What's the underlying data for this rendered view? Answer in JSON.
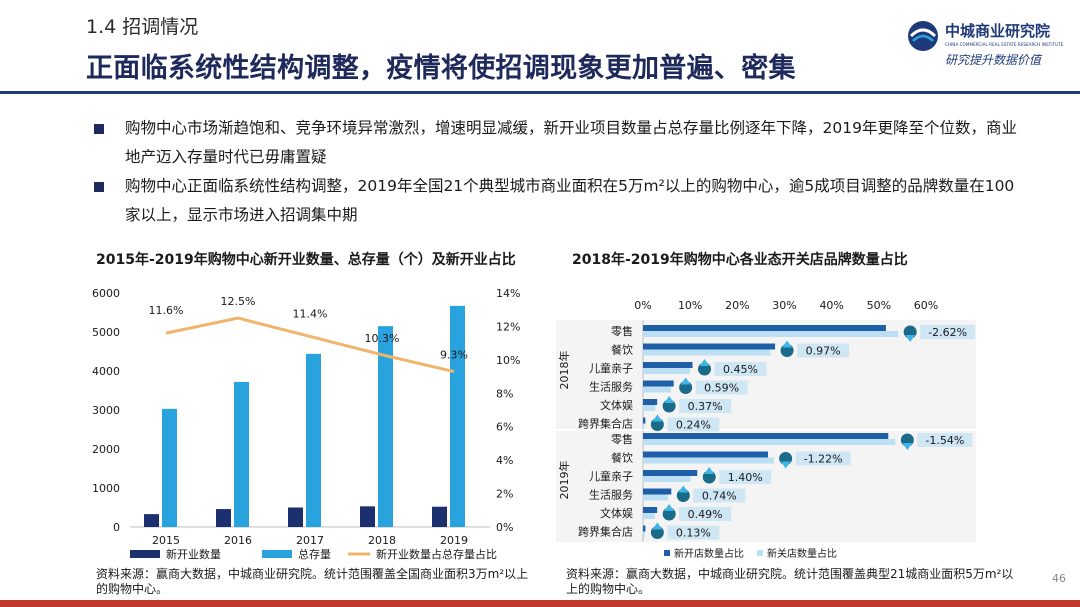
{
  "header": {
    "section": "1.4  招调情况",
    "title": "正面临系统性结构调整，疫情将使招调现象更加普遍、密集"
  },
  "logo": {
    "name": "中城商业研究院",
    "name_en": "CHINA COMMERCIAL REAL ESTATE RESEARCH INSTITUTE",
    "slogan": "研究提升数据价值"
  },
  "bullets": [
    "购物中心市场渐趋饱和、竞争环境异常激烈，增速明显减缓，新开业项目数量占总存量比例逐年下降，2019年更降至个位数，商业地产迈入存量时代已毋庸置疑",
    "购物中心正面临系统性结构调整，2019年全国21个典型城市商业面积在5万m²以上的购物中心，逾5成项目调整的品牌数量在100家以上，显示市场进入招调集中期"
  ],
  "colors": {
    "navy": "#1f2a5c",
    "new_open": "#1c2f6e",
    "stock": "#29a3de",
    "ratio_line": "#f0b46a",
    "open_bar": "#1f5fa8",
    "close_bar": "#bcdff3",
    "accent_red": "#c0392b"
  },
  "chart_data": [
    {
      "type": "bar",
      "title": "2015年-2019年购物中心新开业数量、总存量（个）及新开业占比",
      "categories": [
        "2015",
        "2016",
        "2017",
        "2018",
        "2019"
      ],
      "series": [
        {
          "name": "新开业数量",
          "axis": "left",
          "values": [
            330,
            460,
            500,
            530,
            520
          ]
        },
        {
          "name": "总存量",
          "axis": "left",
          "values": [
            3030,
            3720,
            4440,
            5150,
            5670
          ]
        },
        {
          "name": "新开业数量占总存量占比",
          "axis": "right",
          "type": "line",
          "values": [
            11.6,
            12.5,
            11.4,
            10.3,
            9.3
          ],
          "labels": [
            "11.6%",
            "12.5%",
            "11.4%",
            "10.3%",
            "9.3%"
          ]
        }
      ],
      "ylim": [
        0,
        6000
      ],
      "yticks": [
        "0",
        "1000",
        "2000",
        "3000",
        "4000",
        "5000",
        "6000"
      ],
      "y2lim": [
        0,
        14
      ],
      "y2ticks": [
        "0%",
        "2%",
        "4%",
        "6%",
        "8%",
        "10%",
        "12%",
        "14%"
      ],
      "legend": "bottom",
      "source": "资料来源：赢商大数据，中城商业研究院。统计范围覆盖全国商业面积3万m²以上的购物中心。"
    },
    {
      "type": "bar",
      "orientation": "horizontal",
      "title": "2018年-2019年购物中心各业态开关店品牌数量占比",
      "groups": [
        "2018年",
        "2019年"
      ],
      "categories": [
        "零售",
        "餐饮",
        "儿童亲子",
        "生活服务",
        "文体娱",
        "跨界集合店"
      ],
      "xlim": [
        0,
        60
      ],
      "xticks": [
        "0%",
        "10%",
        "20%",
        "30%",
        "40%",
        "50%",
        "60%"
      ],
      "series": [
        {
          "name": "新开店数量占比",
          "values_2018": [
            51.5,
            28.0,
            10.5,
            6.5,
            3.0,
            0.5
          ],
          "values_2019": [
            52.0,
            26.5,
            11.5,
            6.0,
            3.0,
            0.5
          ]
        },
        {
          "name": "新关店数量占比",
          "values_2018": [
            54.1,
            27.0,
            10.0,
            5.9,
            2.6,
            0.3
          ],
          "values_2019": [
            53.5,
            27.7,
            10.1,
            5.3,
            2.5,
            0.4
          ]
        }
      ],
      "diff_labels_2018": [
        "-2.62%",
        "0.97%",
        "0.45%",
        "0.59%",
        "0.37%",
        "0.24%"
      ],
      "diff_labels_2019": [
        "-1.54%",
        "-1.22%",
        "1.40%",
        "0.74%",
        "0.49%",
        "0.13%"
      ],
      "diff_dir_2018": [
        "down",
        "up",
        "up",
        "up",
        "up",
        "up"
      ],
      "diff_dir_2019": [
        "down",
        "down",
        "up",
        "up",
        "up",
        "up"
      ],
      "legend": "bottom",
      "source": "资料来源：赢商大数据，中城商业研究院。统计范围覆盖典型21城商业面积5万m²以上的购物中心。"
    }
  ],
  "page_number": "46"
}
